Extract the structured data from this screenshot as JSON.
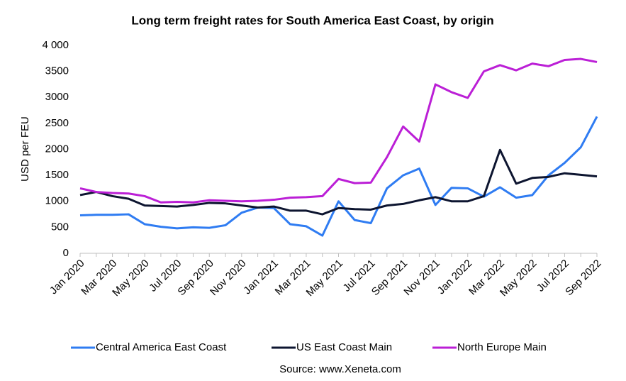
{
  "chart_data": {
    "type": "line",
    "title": "Long term freight rates for South America East Coast, by origin",
    "y_label": "USD per FEU",
    "source": "Source: www.Xeneta.com",
    "categories": [
      "Jan 2020",
      null,
      "Mar 2020",
      null,
      "May 2020",
      null,
      "Jul 2020",
      null,
      "Sep 2020",
      null,
      "Nov 2020",
      null,
      "Jan 2021",
      null,
      "Mar 2021",
      null,
      "May 2021",
      null,
      "Jul 2021",
      null,
      "Sep 2021",
      null,
      "Nov 2021",
      null,
      "Jan 2022",
      null,
      "Mar 2022",
      null,
      "May 2022",
      null,
      "Jul 2022",
      null,
      "Sep 2022"
    ],
    "series": [
      {
        "name": "Central America East Coast",
        "color": "#2f7cf2",
        "values": [
          730,
          740,
          740,
          750,
          560,
          510,
          480,
          500,
          490,
          540,
          780,
          880,
          870,
          560,
          520,
          340,
          1000,
          640,
          580,
          1250,
          1500,
          1630,
          930,
          1260,
          1250,
          1090,
          1270,
          1070,
          1120,
          1500,
          1740,
          2040,
          2630
        ]
      },
      {
        "name": "US East Coast Main",
        "color": "#0d1530",
        "values": [
          1120,
          1180,
          1100,
          1050,
          920,
          910,
          900,
          930,
          970,
          960,
          920,
          880,
          900,
          820,
          820,
          750,
          870,
          850,
          840,
          920,
          950,
          1020,
          1080,
          1000,
          1000,
          1100,
          1990,
          1340,
          1450,
          1470,
          1540,
          1510,
          1480
        ]
      },
      {
        "name": "North Europe Main",
        "color": "#bb1fd6",
        "values": [
          1250,
          1180,
          1160,
          1150,
          1100,
          980,
          990,
          980,
          1020,
          1010,
          1000,
          1010,
          1030,
          1070,
          1080,
          1100,
          1430,
          1350,
          1360,
          1850,
          2440,
          2150,
          3250,
          3100,
          2990,
          3500,
          3620,
          3520,
          3650,
          3600,
          3720,
          3740,
          3680
        ]
      }
    ],
    "ylim": [
      0,
      4000
    ],
    "yticks": [
      0,
      500,
      1000,
      1500,
      2000,
      2500,
      3000,
      3500,
      {
        "value": 4000,
        "label": "4 000"
      }
    ],
    "grid": false,
    "legend": "bottom"
  }
}
